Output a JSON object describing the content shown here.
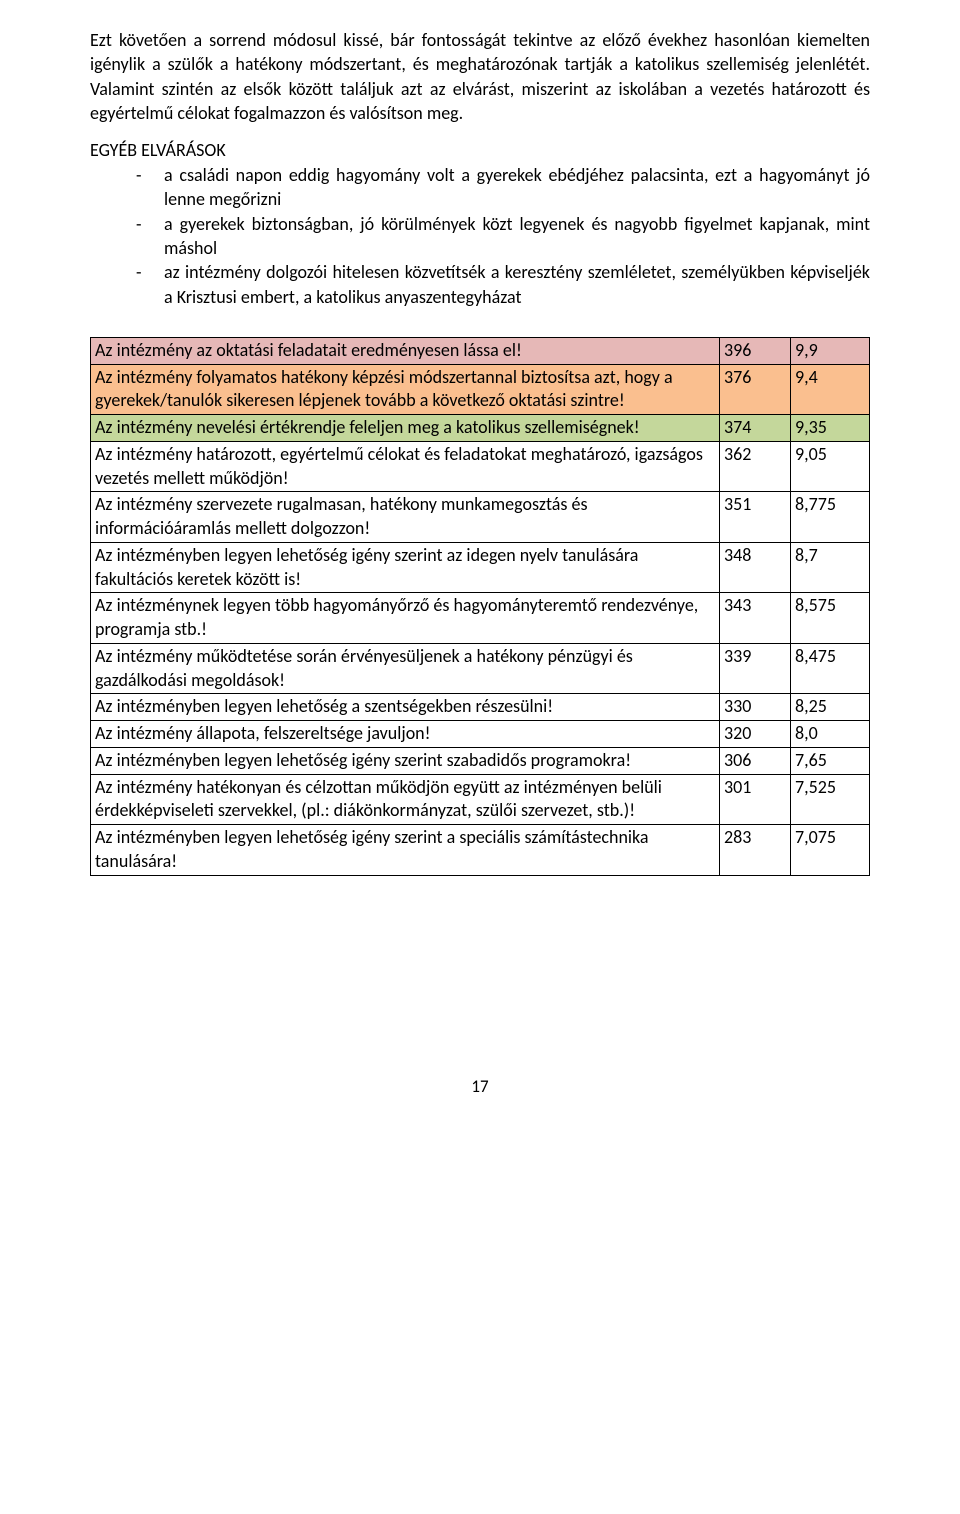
{
  "intro_paragraph": "Ezt követően a sorrend módosul kissé, bár fontosságát tekintve az előző évekhez hasonlóan kiemelten igénylik a szülők a hatékony módszertant, és meghatározónak tartják a katolikus szellemiség jelenlétét. Valamint szintén az elsők között találjuk azt az elvárást, miszerint az iskolában a vezetés határozott és egyértelmű célokat fogalmazzon és valósítson meg.",
  "section_heading": "EGYÉB ELVÁRÁSOK",
  "bullets": [
    "a családi napon eddig hagyomány volt a gyerekek ebédjéhez palacsinta, ezt a hagyományt jó lenne megőrizni",
    "a gyerekek biztonságban, jó körülmények közt legyenek és nagyobb figyelmet kapjanak, mint máshol",
    "az intézmény dolgozói hitelesen közvetítsék a keresztény szemléletet, személyükben képviseljék a Krisztusi embert, a katolikus anyaszentegyházat"
  ],
  "table": {
    "row_colors": {
      "highlight_pink": "#e6b8b7",
      "highlight_orange": "#fabf8f",
      "highlight_green": "#c4d79b",
      "default": "#ffffff"
    },
    "rows": [
      {
        "desc": "Az intézmény az oktatási feladatait eredményesen lássa el!",
        "n1": "396",
        "n2": "9,9",
        "bg": "highlight_pink"
      },
      {
        "desc": "Az intézmény folyamatos hatékony képzési módszertannal biztosítsa azt, hogy a gyerekek/tanulók sikeresen lépjenek tovább a következő oktatási szintre!",
        "n1": "376",
        "n2": "9,4",
        "bg": "highlight_orange"
      },
      {
        "desc": "Az intézmény nevelési értékrendje feleljen meg a katolikus szellemiségnek!",
        "n1": "374",
        "n2": "9,35",
        "bg": "highlight_green"
      },
      {
        "desc": "Az intézmény határozott, egyértelmű célokat és feladatokat meghatározó, igazságos vezetés mellett működjön!",
        "n1": "362",
        "n2": "9,05",
        "bg": "default"
      },
      {
        "desc": "Az intézmény szervezete rugalmasan, hatékony munkamegosztás és információáramlás mellett dolgozzon!",
        "n1": "351",
        "n2": "8,775",
        "bg": "default"
      },
      {
        "desc": "Az intézményben legyen lehetőség igény szerint az idegen nyelv tanulására fakultációs keretek között is!",
        "n1": "348",
        "n2": "8,7",
        "bg": "default"
      },
      {
        "desc": "Az intézménynek legyen több hagyományőrző és hagyományteremtő rendezvénye, programja stb.!",
        "n1": "343",
        "n2": "8,575",
        "bg": "default"
      },
      {
        "desc": "Az intézmény működtetése során érvényesüljenek a hatékony pénzügyi és gazdálkodási megoldások!",
        "n1": "339",
        "n2": "8,475",
        "bg": "default"
      },
      {
        "desc": "Az intézményben legyen lehetőség a szentségekben részesülni!",
        "n1": "330",
        "n2": "8,25",
        "bg": "default"
      },
      {
        "desc": "Az intézmény állapota, felszereltsége javuljon!",
        "n1": "320",
        "n2": "8,0",
        "bg": "default"
      },
      {
        "desc": "Az intézményben legyen lehetőség igény szerint szabadidős programokra!",
        "n1": "306",
        "n2": "7,65",
        "bg": "default"
      },
      {
        "desc": "Az intézmény hatékonyan és célzottan működjön együtt az intézményen belüli érdekképviseleti szervekkel, (pl.: diákönkormányzat, szülői szervezet, stb.)!",
        "n1": "301",
        "n2": "7,525",
        "bg": "default"
      },
      {
        "desc": "Az intézményben legyen lehetőség igény szerint a speciális számítástechnika tanulására!",
        "n1": "283",
        "n2": "7,075",
        "bg": "default"
      }
    ]
  },
  "page_number": "17"
}
